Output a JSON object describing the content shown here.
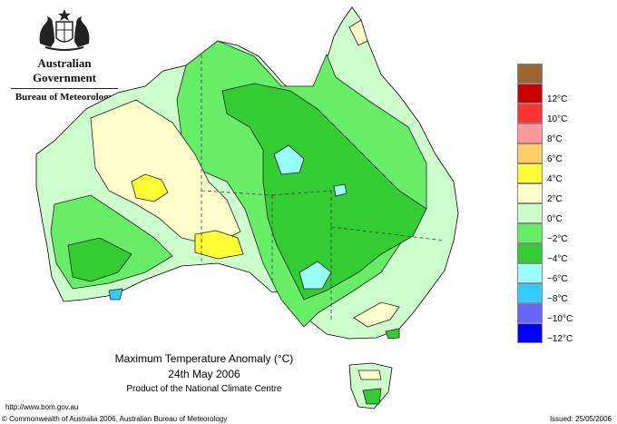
{
  "header": {
    "government": "Australian Government",
    "bureau": "Bureau of Meteorology",
    "crest_icon": "coat-of-arms-icon"
  },
  "map": {
    "title": "Maximum Temperature Anomaly (°C)",
    "date": "24th May 2006",
    "product": "Product of the National Climate Centre"
  },
  "legend": [
    {
      "label": "",
      "color": "#996633"
    },
    {
      "label": "12°C",
      "color": "#cc0000"
    },
    {
      "label": "10°C",
      "color": "#ff3333"
    },
    {
      "label": "8°C",
      "color": "#ff9999"
    },
    {
      "label": "6°C",
      "color": "#ffcc66"
    },
    {
      "label": "4°C",
      "color": "#ffff33"
    },
    {
      "label": "2°C",
      "color": "#ffffcc"
    },
    {
      "label": "0°C",
      "color": "#ccffcc"
    },
    {
      "label": "−2°C",
      "color": "#66ee66"
    },
    {
      "label": "−4°C",
      "color": "#33cc33"
    },
    {
      "label": "−6°C",
      "color": "#99ffff"
    },
    {
      "label": "−8°C",
      "color": "#33ccff"
    },
    {
      "label": "−10°C",
      "color": "#6666ff"
    },
    {
      "label": "−12°C",
      "color": "#0000ff"
    }
  ],
  "footer": {
    "url": "http://www.bom.gov.au",
    "copyright": "© Commonwealth of Australia 2006, Australian Bureau of Meteorology",
    "issued": "Issued: 25/05/2006"
  }
}
